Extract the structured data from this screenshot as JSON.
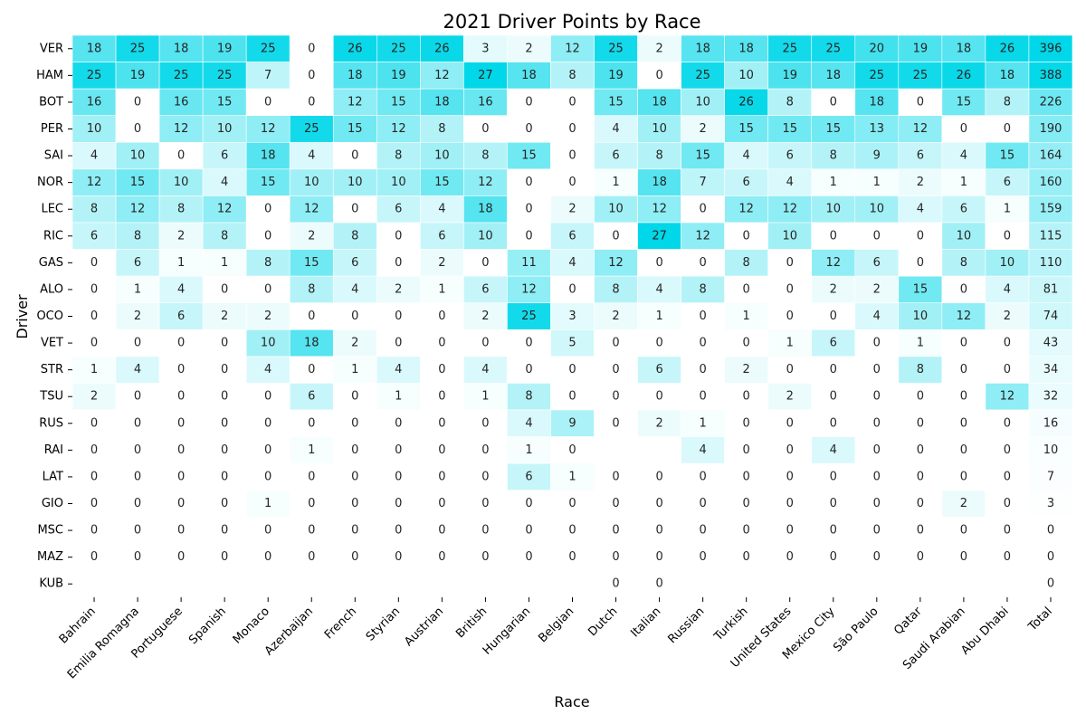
{
  "chart_data": {
    "type": "heatmap",
    "title": "2021 Driver Points by Race",
    "xlabel": "Race",
    "ylabel": "Driver",
    "x_categories": [
      "Bahrain",
      "Emilia Romagna",
      "Portuguese",
      "Spanish",
      "Monaco",
      "Azerbaijan",
      "French",
      "Styrian",
      "Austrian",
      "British",
      "Hungarian",
      "Belgian",
      "Dutch",
      "Italian",
      "Russian",
      "Turkish",
      "United States",
      "Mexico City",
      "São Paulo",
      "Qatar",
      "Saudi Arabian",
      "Abu Dhabi",
      "Total"
    ],
    "y_categories": [
      "VER",
      "HAM",
      "BOT",
      "PER",
      "SAI",
      "NOR",
      "LEC",
      "RIC",
      "GAS",
      "ALO",
      "OCO",
      "VET",
      "STR",
      "TSU",
      "RUS",
      "RAI",
      "LAT",
      "GIO",
      "MSC",
      "MAZ",
      "KUB"
    ],
    "values": [
      [
        18,
        25,
        18,
        19,
        25,
        0,
        26,
        25,
        26,
        3,
        2,
        12,
        25,
        2,
        18,
        18,
        25,
        25,
        20,
        19,
        18,
        26,
        396
      ],
      [
        25,
        19,
        25,
        25,
        7,
        0,
        18,
        19,
        12,
        27,
        18,
        8,
        19,
        0,
        25,
        10,
        19,
        18,
        25,
        25,
        26,
        18,
        388
      ],
      [
        16,
        0,
        16,
        15,
        0,
        0,
        12,
        15,
        18,
        16,
        0,
        0,
        15,
        18,
        10,
        26,
        8,
        0,
        18,
        0,
        15,
        8,
        226
      ],
      [
        10,
        0,
        12,
        10,
        12,
        25,
        15,
        12,
        8,
        0,
        0,
        0,
        4,
        10,
        2,
        15,
        15,
        15,
        13,
        12,
        0,
        0,
        190
      ],
      [
        4,
        10,
        0,
        6,
        18,
        4,
        0,
        8,
        10,
        8,
        15,
        0,
        6,
        8,
        15,
        4,
        6,
        8,
        9,
        6,
        4,
        15,
        164
      ],
      [
        12,
        15,
        10,
        4,
        15,
        10,
        10,
        10,
        15,
        12,
        0,
        0,
        1,
        18,
        7,
        6,
        4,
        1,
        1,
        2,
        1,
        6,
        160
      ],
      [
        8,
        12,
        8,
        12,
        0,
        12,
        0,
        6,
        4,
        18,
        0,
        2,
        10,
        12,
        0,
        12,
        12,
        10,
        10,
        4,
        6,
        1,
        159
      ],
      [
        6,
        8,
        2,
        8,
        0,
        2,
        8,
        0,
        6,
        10,
        0,
        6,
        0,
        27,
        12,
        0,
        10,
        0,
        0,
        0,
        10,
        0,
        115
      ],
      [
        0,
        6,
        1,
        1,
        8,
        15,
        6,
        0,
        2,
        0,
        11,
        4,
        12,
        0,
        0,
        8,
        0,
        12,
        6,
        0,
        8,
        10,
        110
      ],
      [
        0,
        1,
        4,
        0,
        0,
        8,
        4,
        2,
        1,
        6,
        12,
        0,
        8,
        4,
        8,
        0,
        0,
        2,
        2,
        15,
        0,
        4,
        81
      ],
      [
        0,
        2,
        6,
        2,
        2,
        0,
        0,
        0,
        0,
        2,
        25,
        3,
        2,
        1,
        0,
        1,
        0,
        0,
        4,
        10,
        12,
        2,
        74
      ],
      [
        0,
        0,
        0,
        0,
        10,
        18,
        2,
        0,
        0,
        0,
        0,
        5,
        0,
        0,
        0,
        0,
        1,
        6,
        0,
        1,
        0,
        0,
        43
      ],
      [
        1,
        4,
        0,
        0,
        4,
        0,
        1,
        4,
        0,
        4,
        0,
        0,
        0,
        6,
        0,
        2,
        0,
        0,
        0,
        8,
        0,
        0,
        34
      ],
      [
        2,
        0,
        0,
        0,
        0,
        6,
        0,
        1,
        0,
        1,
        8,
        0,
        0,
        0,
        0,
        0,
        2,
        0,
        0,
        0,
        0,
        12,
        32
      ],
      [
        0,
        0,
        0,
        0,
        0,
        0,
        0,
        0,
        0,
        0,
        4,
        9,
        0,
        2,
        1,
        0,
        0,
        0,
        0,
        0,
        0,
        0,
        16
      ],
      [
        0,
        0,
        0,
        0,
        0,
        1,
        0,
        0,
        0,
        0,
        1,
        0,
        null,
        null,
        4,
        0,
        0,
        4,
        0,
        0,
        0,
        0,
        10
      ],
      [
        0,
        0,
        0,
        0,
        0,
        0,
        0,
        0,
        0,
        0,
        6,
        1,
        0,
        0,
        0,
        0,
        0,
        0,
        0,
        0,
        0,
        0,
        7
      ],
      [
        0,
        0,
        0,
        0,
        1,
        0,
        0,
        0,
        0,
        0,
        0,
        0,
        0,
        0,
        0,
        0,
        0,
        0,
        0,
        0,
        2,
        0,
        3
      ],
      [
        0,
        0,
        0,
        0,
        0,
        0,
        0,
        0,
        0,
        0,
        0,
        0,
        0,
        0,
        0,
        0,
        0,
        0,
        0,
        0,
        0,
        0,
        0
      ],
      [
        0,
        0,
        0,
        0,
        0,
        0,
        0,
        0,
        0,
        0,
        0,
        0,
        0,
        0,
        0,
        0,
        0,
        0,
        0,
        0,
        0,
        0,
        0
      ],
      [
        null,
        null,
        null,
        null,
        null,
        null,
        null,
        null,
        null,
        null,
        null,
        null,
        0,
        0,
        null,
        null,
        null,
        null,
        null,
        null,
        null,
        null,
        0
      ]
    ],
    "colormap": {
      "low": "#ffffff",
      "high": "#00d7e8"
    },
    "color_scale_race": [
      0,
      27
    ],
    "color_scale_total": [
      0,
      396
    ],
    "colorbar": false,
    "missing_cells_blank": true
  }
}
